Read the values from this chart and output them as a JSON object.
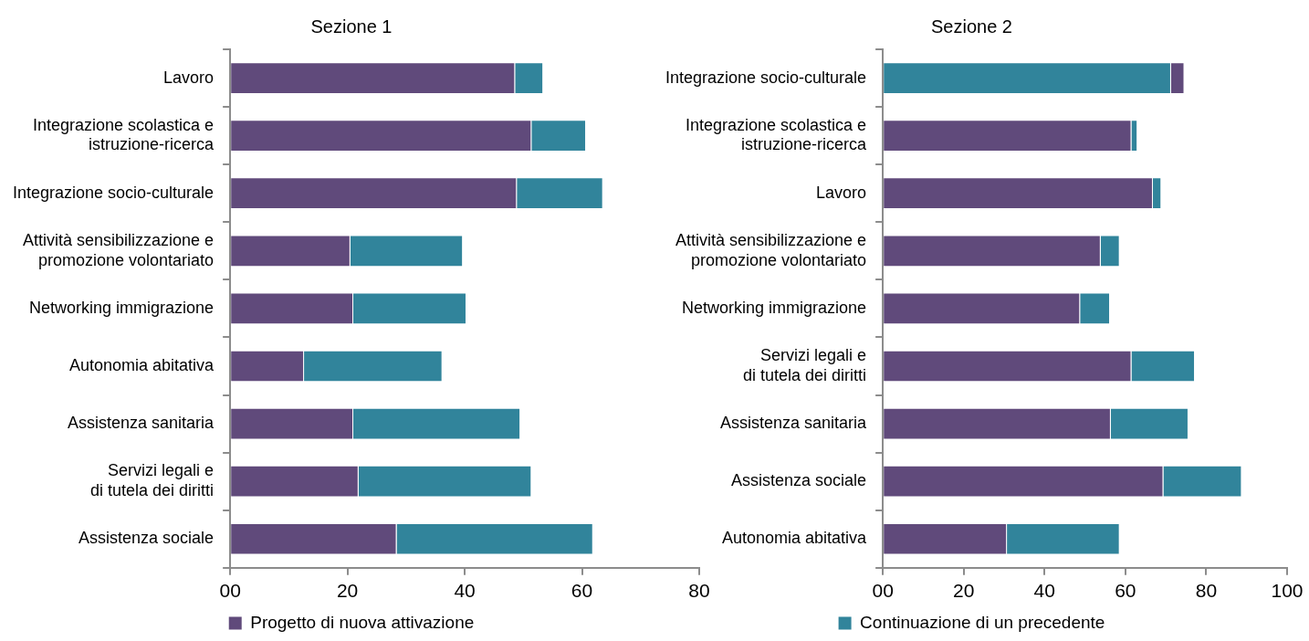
{
  "chart_data": [
    {
      "type": "bar",
      "orientation": "horizontal",
      "stacked": true,
      "title": "Sezione 1",
      "categories": [
        "Lavoro",
        "Integrazione scolastica e\nistruzione-ricerca",
        "Integrazione socio-culturale",
        "Attività sensibilizzazione e\npromozione volontariato",
        "Networking immigrazione",
        "Autonomia abitativa",
        "Assistenza sanitaria",
        "Servizi legali e\ndi tutela dei diritti",
        "Assistenza sociale"
      ],
      "series": [
        {
          "name": "Progetto di nuova attivazione",
          "color": "#604a7b",
          "values": [
            48.6,
            51.4,
            48.9,
            20.5,
            21.0,
            12.6,
            21.0,
            21.9,
            28.4
          ]
        },
        {
          "color": "#31849b",
          "values": [
            4.8,
            9.3,
            14.7,
            19.2,
            19.3,
            23.6,
            28.5,
            29.5,
            33.5
          ]
        }
      ],
      "xlim": [
        0,
        80
      ],
      "xticks": [
        {
          "value": 0,
          "label": "00"
        },
        20,
        40,
        60,
        80
      ],
      "grid": false,
      "legend": "bottom"
    },
    {
      "type": "bar",
      "orientation": "horizontal",
      "stacked": true,
      "title": "Sezione 2",
      "categories": [
        "Integrazione socio-culturale",
        "Integrazione scolastica e\nistruzione-ricerca",
        "Lavoro",
        "Attività sensibilizzazione e\npromozione volontariato",
        "Networking immigrazione",
        "Servizi legali e\ndi tutela dei diritti",
        "Assistenza sanitaria",
        "Assistenza sociale",
        "Autonomia abitativa"
      ],
      "series": [
        {
          "color": "#604a7b",
          "colors": [
            "#31849b",
            "#604a7b",
            "#604a7b",
            "#604a7b",
            "#604a7b",
            "#604a7b",
            "#604a7b",
            "#604a7b",
            "#604a7b"
          ],
          "values": [
            71.3,
            61.5,
            66.8,
            53.9,
            48.8,
            61.5,
            56.4,
            69.4,
            30.7
          ]
        },
        {
          "name": "Continuazione di un precedente",
          "color": "#31849b",
          "colors": [
            "#604a7b",
            "#31849b",
            "#31849b",
            "#31849b",
            "#31849b",
            "#31849b",
            "#31849b",
            "#31849b",
            "#31849b"
          ],
          "values": [
            3.3,
            1.5,
            2.1,
            4.7,
            7.4,
            15.7,
            19.2,
            19.4,
            27.9
          ]
        }
      ],
      "xlim": [
        0,
        100
      ],
      "xticks": [
        {
          "value": 0,
          "label": "00"
        },
        20,
        40,
        60,
        80,
        100
      ],
      "grid": false,
      "legend": "bottom"
    }
  ]
}
